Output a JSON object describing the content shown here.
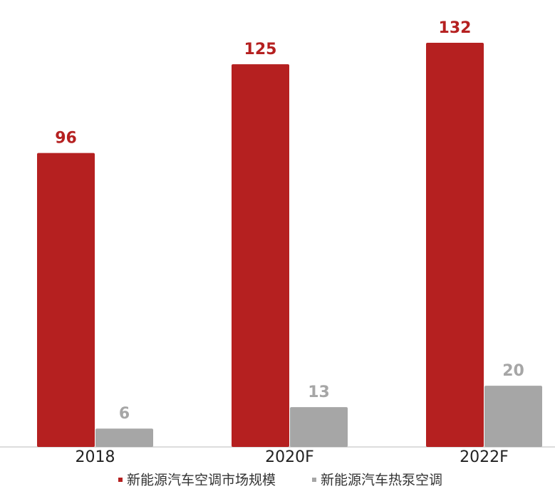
{
  "chart_data": {
    "type": "bar",
    "categories": [
      "2018",
      "2020F",
      "2022F"
    ],
    "series": [
      {
        "name": "新能源汽车空调市场规模",
        "color": "#b52020",
        "values": [
          96,
          125,
          132
        ]
      },
      {
        "name": "新能源汽车热泵空调",
        "color": "#a6a6a6",
        "values": [
          6,
          13,
          20
        ]
      }
    ]
  }
}
